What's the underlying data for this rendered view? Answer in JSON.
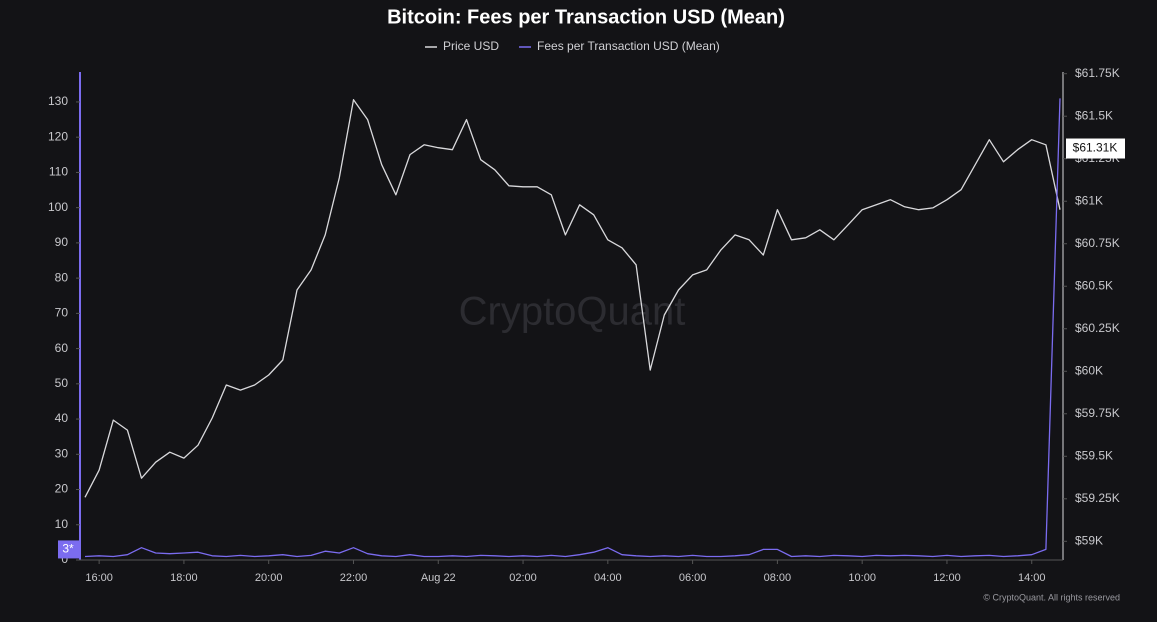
{
  "chart_data": {
    "type": "line",
    "title": "Bitcoin: Fees per Transaction USD (Mean)",
    "watermark": "CryptoQuant",
    "credit": "© CryptoQuant. All rights reserved",
    "categories": [
      null,
      "16:00",
      null,
      null,
      null,
      null,
      null,
      "18:00",
      null,
      null,
      null,
      null,
      null,
      "20:00",
      null,
      null,
      null,
      null,
      null,
      "22:00",
      null,
      null,
      null,
      null,
      null,
      "Aug 22",
      null,
      null,
      null,
      null,
      null,
      "02:00",
      null,
      null,
      null,
      null,
      null,
      "04:00",
      null,
      null,
      null,
      null,
      null,
      "06:00",
      null,
      null,
      null,
      null,
      null,
      "08:00",
      null,
      null,
      null,
      null,
      null,
      "10:00",
      null,
      null,
      null,
      null,
      null,
      "12:00",
      null,
      null,
      null,
      null,
      null,
      "14:00",
      null,
      null
    ],
    "series": [
      {
        "name": "Price USD",
        "color": "#d9d9dc",
        "axis": "y2",
        "values": [
          59259,
          59418,
          59713,
          59654,
          59371,
          59465,
          59524,
          59489,
          59565,
          59725,
          59919,
          59889,
          59919,
          59978,
          60066,
          60478,
          60596,
          60802,
          61138,
          61597,
          61480,
          61215,
          61038,
          61274,
          61332,
          61315,
          61303,
          61480,
          61244,
          61185,
          61091,
          61085,
          61085,
          61038,
          60802,
          60979,
          60920,
          60773,
          60726,
          60626,
          60007,
          60331,
          60478,
          60567,
          60596,
          60714,
          60802,
          60773,
          60684,
          60950,
          60773,
          60785,
          60832,
          60773,
          60861,
          60950,
          60979,
          61009,
          60967,
          60950,
          60961,
          61009,
          61068,
          61215,
          61362,
          61232,
          61303,
          61362,
          61332,
          60950
        ]
      },
      {
        "name": "Fees per Transaction USD (Mean)",
        "color": "#7b6cf0",
        "axis": "y",
        "values": [
          1,
          1.2,
          1,
          1.5,
          3.5,
          2,
          1.8,
          2,
          2.2,
          1.2,
          1,
          1.3,
          1,
          1.2,
          1.5,
          1,
          1.3,
          2.5,
          2,
          3.5,
          1.8,
          1.2,
          1,
          1.5,
          1,
          1,
          1.2,
          1,
          1.3,
          1.2,
          1,
          1.2,
          1,
          1.3,
          1,
          1.5,
          2.2,
          3.5,
          1.5,
          1.2,
          1,
          1.2,
          1,
          1.3,
          1,
          1,
          1.2,
          1.5,
          3,
          3,
          1,
          1.2,
          1,
          1.3,
          1.2,
          1,
          1.3,
          1.2,
          1.3,
          1.2,
          1,
          1.3,
          1,
          1.2,
          1.3,
          1,
          1.2,
          1.5,
          3,
          131
        ]
      }
    ],
    "ylim": [
      0,
      138.5
    ],
    "yticks": [
      0,
      10,
      20,
      30,
      40,
      50,
      60,
      70,
      80,
      90,
      100,
      110,
      120,
      130
    ],
    "y2lim": [
      58890,
      61760
    ],
    "y2ticks": [
      {
        "value": 59000,
        "label": "$59K"
      },
      {
        "value": 59250,
        "label": "$59.25K"
      },
      {
        "value": 59500,
        "label": "$59.5K"
      },
      {
        "value": 59750,
        "label": "$59.75K"
      },
      {
        "value": 60000,
        "label": "$60K"
      },
      {
        "value": 60250,
        "label": "$60.25K"
      },
      {
        "value": 60500,
        "label": "$60.5K"
      },
      {
        "value": 60750,
        "label": "$60.75K"
      },
      {
        "value": 61000,
        "label": "$61K"
      },
      {
        "value": 61250,
        "label": "$61.25K"
      },
      {
        "value": 61500,
        "label": "$61.5K"
      },
      {
        "value": 61750,
        "label": "$61.75K"
      }
    ],
    "annotations": [
      {
        "text": "3*",
        "value": 3,
        "axis": "y"
      },
      {
        "text": "$61.31K",
        "value": 61310,
        "axis": "y2"
      }
    ],
    "grid": false,
    "legend": "top"
  }
}
